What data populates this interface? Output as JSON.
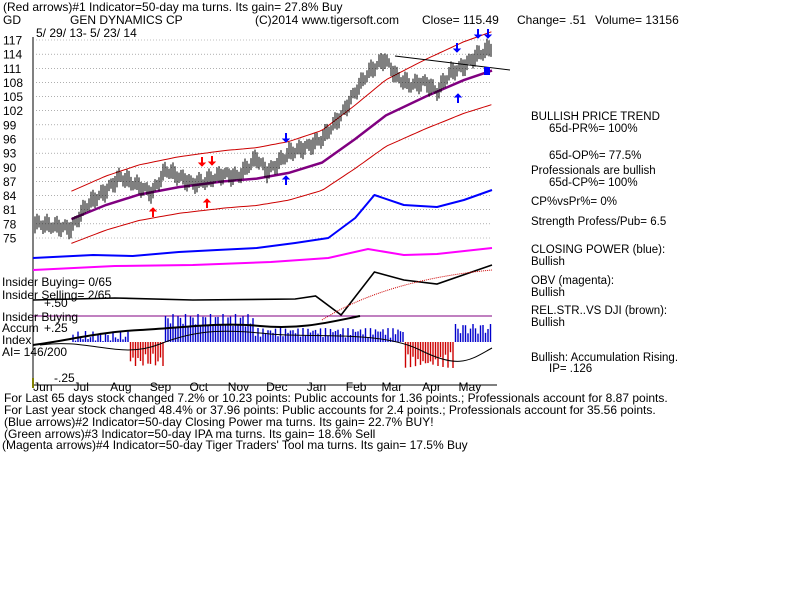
{
  "header": {
    "line1": "(Red arrows)#1 Indicator=50-day ma turns. Its gain= 27.8% Buy",
    "ticker": "GD",
    "company": "GEN DYNAMICS CP",
    "copyright": "(C)2014 www.tigersoft.com",
    "close": "Close=  115.49",
    "change": "Change= .51",
    "volume": "Volume=  13156",
    "date_range": "5/ 29/ 13-  5/ 23/ 14"
  },
  "right_panel": {
    "trend_title": "BULLISH PRICE TREND",
    "pr": "65d-PR%= 100%",
    "op": "65d-OP%= 77.5%",
    "prof1": "Professionals are bullish",
    "cp": "65d-CP%= 100%",
    "cpvspr": "CP%vsPr%=  0%",
    "strength": "Strength Profess/Pub= 6.5",
    "closing_power": "CLOSING POWER (blue):",
    "closing_power_val": "Bullish",
    "obv": "OBV (magenta):",
    "obv_val": "Bullish",
    "relstr": "REL.STR..VS DJI (brown):",
    "relstr_val": "Bullish",
    "accum": "Bullish: Accumulation Rising.",
    "ip": "IP=  .126"
  },
  "left_panel": {
    "insider_buying": "Insider Buying= 0/65",
    "insider_selling": "Insider Selling= 2/65",
    "plus50": "+.50",
    "insider_buying_line": "Insider Buying",
    "accum": "Accum",
    "plus25": "+.25",
    "index": "Index",
    "ai": "AI= 146/200",
    "minus25": "-.25"
  },
  "footer": {
    "l1": "For Last 65 days stock changed  7.2% or  10.23 points:  Public accounts for  1.36 points.;  Professionals account for  8.87 points.",
    "l2": "For Last year stock changed  48.4% or  37.96 points:  Public accounts for  2.4 points.;  Professionals account for  35.56 points.",
    "l3": "(Blue arrows)#2 Indicator=50-day Closing Power ma turns. Its gain= 22.7% BUY!",
    "l4": "(Green arrows)#3 Indicator=50-day IPA ma turns. Its gain= 18.6% Sell",
    "l5": "(Magenta arrows)#4 Indicator=50-day Tiger Traders' Tool ma turns. Its gain= 17.5% Buy"
  },
  "colors": {
    "price": "#000000",
    "band": "#cc0000",
    "ma": "#800080",
    "closing_power": "#0000ff",
    "obv": "#ff00ff",
    "relstr": "#800000",
    "insider": "#800080",
    "accum_pos": "#0000cc",
    "accum_neg": "#cc0000",
    "grid": "#808080"
  },
  "chart_data": {
    "type": "line",
    "ylim": [
      75,
      117
    ],
    "y_ticks": [
      117,
      114,
      111,
      108,
      105,
      102,
      99,
      96,
      93,
      90,
      87,
      84,
      81,
      78,
      75
    ],
    "x_tick_labels": [
      "Jun",
      "Jul",
      "Aug",
      "Sep",
      "Oct",
      "Nov",
      "Dec",
      "Jan",
      "Feb",
      "Mar",
      "Apr",
      "May"
    ],
    "price_series": {
      "dates": [
        "2013-05-29",
        "2013-06-15",
        "2013-06-28",
        "2013-07-10",
        "2013-07-25",
        "2013-08-05",
        "2013-08-20",
        "2013-08-30",
        "2013-09-10",
        "2013-09-20",
        "2013-10-01",
        "2013-10-10",
        "2013-10-25",
        "2013-11-05",
        "2013-11-20",
        "2013-11-28",
        "2013-12-05",
        "2013-12-15",
        "2013-12-31",
        "2014-01-10",
        "2014-01-25",
        "2014-02-05",
        "2014-02-15",
        "2014-02-28",
        "2014-03-10",
        "2014-03-20",
        "2014-04-01",
        "2014-04-10",
        "2014-04-20",
        "2014-05-01",
        "2014-05-10",
        "2014-05-23"
      ],
      "close": [
        78.2,
        77.5,
        77,
        82,
        85,
        88,
        86,
        84.5,
        89.5,
        88,
        86.5,
        87,
        88.5,
        88,
        92,
        89,
        90.5,
        93,
        94.5,
        96,
        101,
        106,
        110,
        113,
        109,
        107.5,
        108,
        106,
        110,
        111.5,
        113.5,
        115.5
      ]
    },
    "ma50": {
      "dates": [
        "2013-06-28",
        "2013-07-25",
        "2013-08-20",
        "2013-09-20",
        "2013-10-25",
        "2013-11-20",
        "2013-12-15",
        "2014-01-10",
        "2014-02-05",
        "2014-03-01",
        "2014-04-01",
        "2014-05-01",
        "2014-05-23"
      ],
      "values": [
        79,
        82,
        84.2,
        85.8,
        87,
        87.6,
        88.8,
        91,
        96,
        101,
        105,
        108.5,
        110.5
      ]
    }
  }
}
